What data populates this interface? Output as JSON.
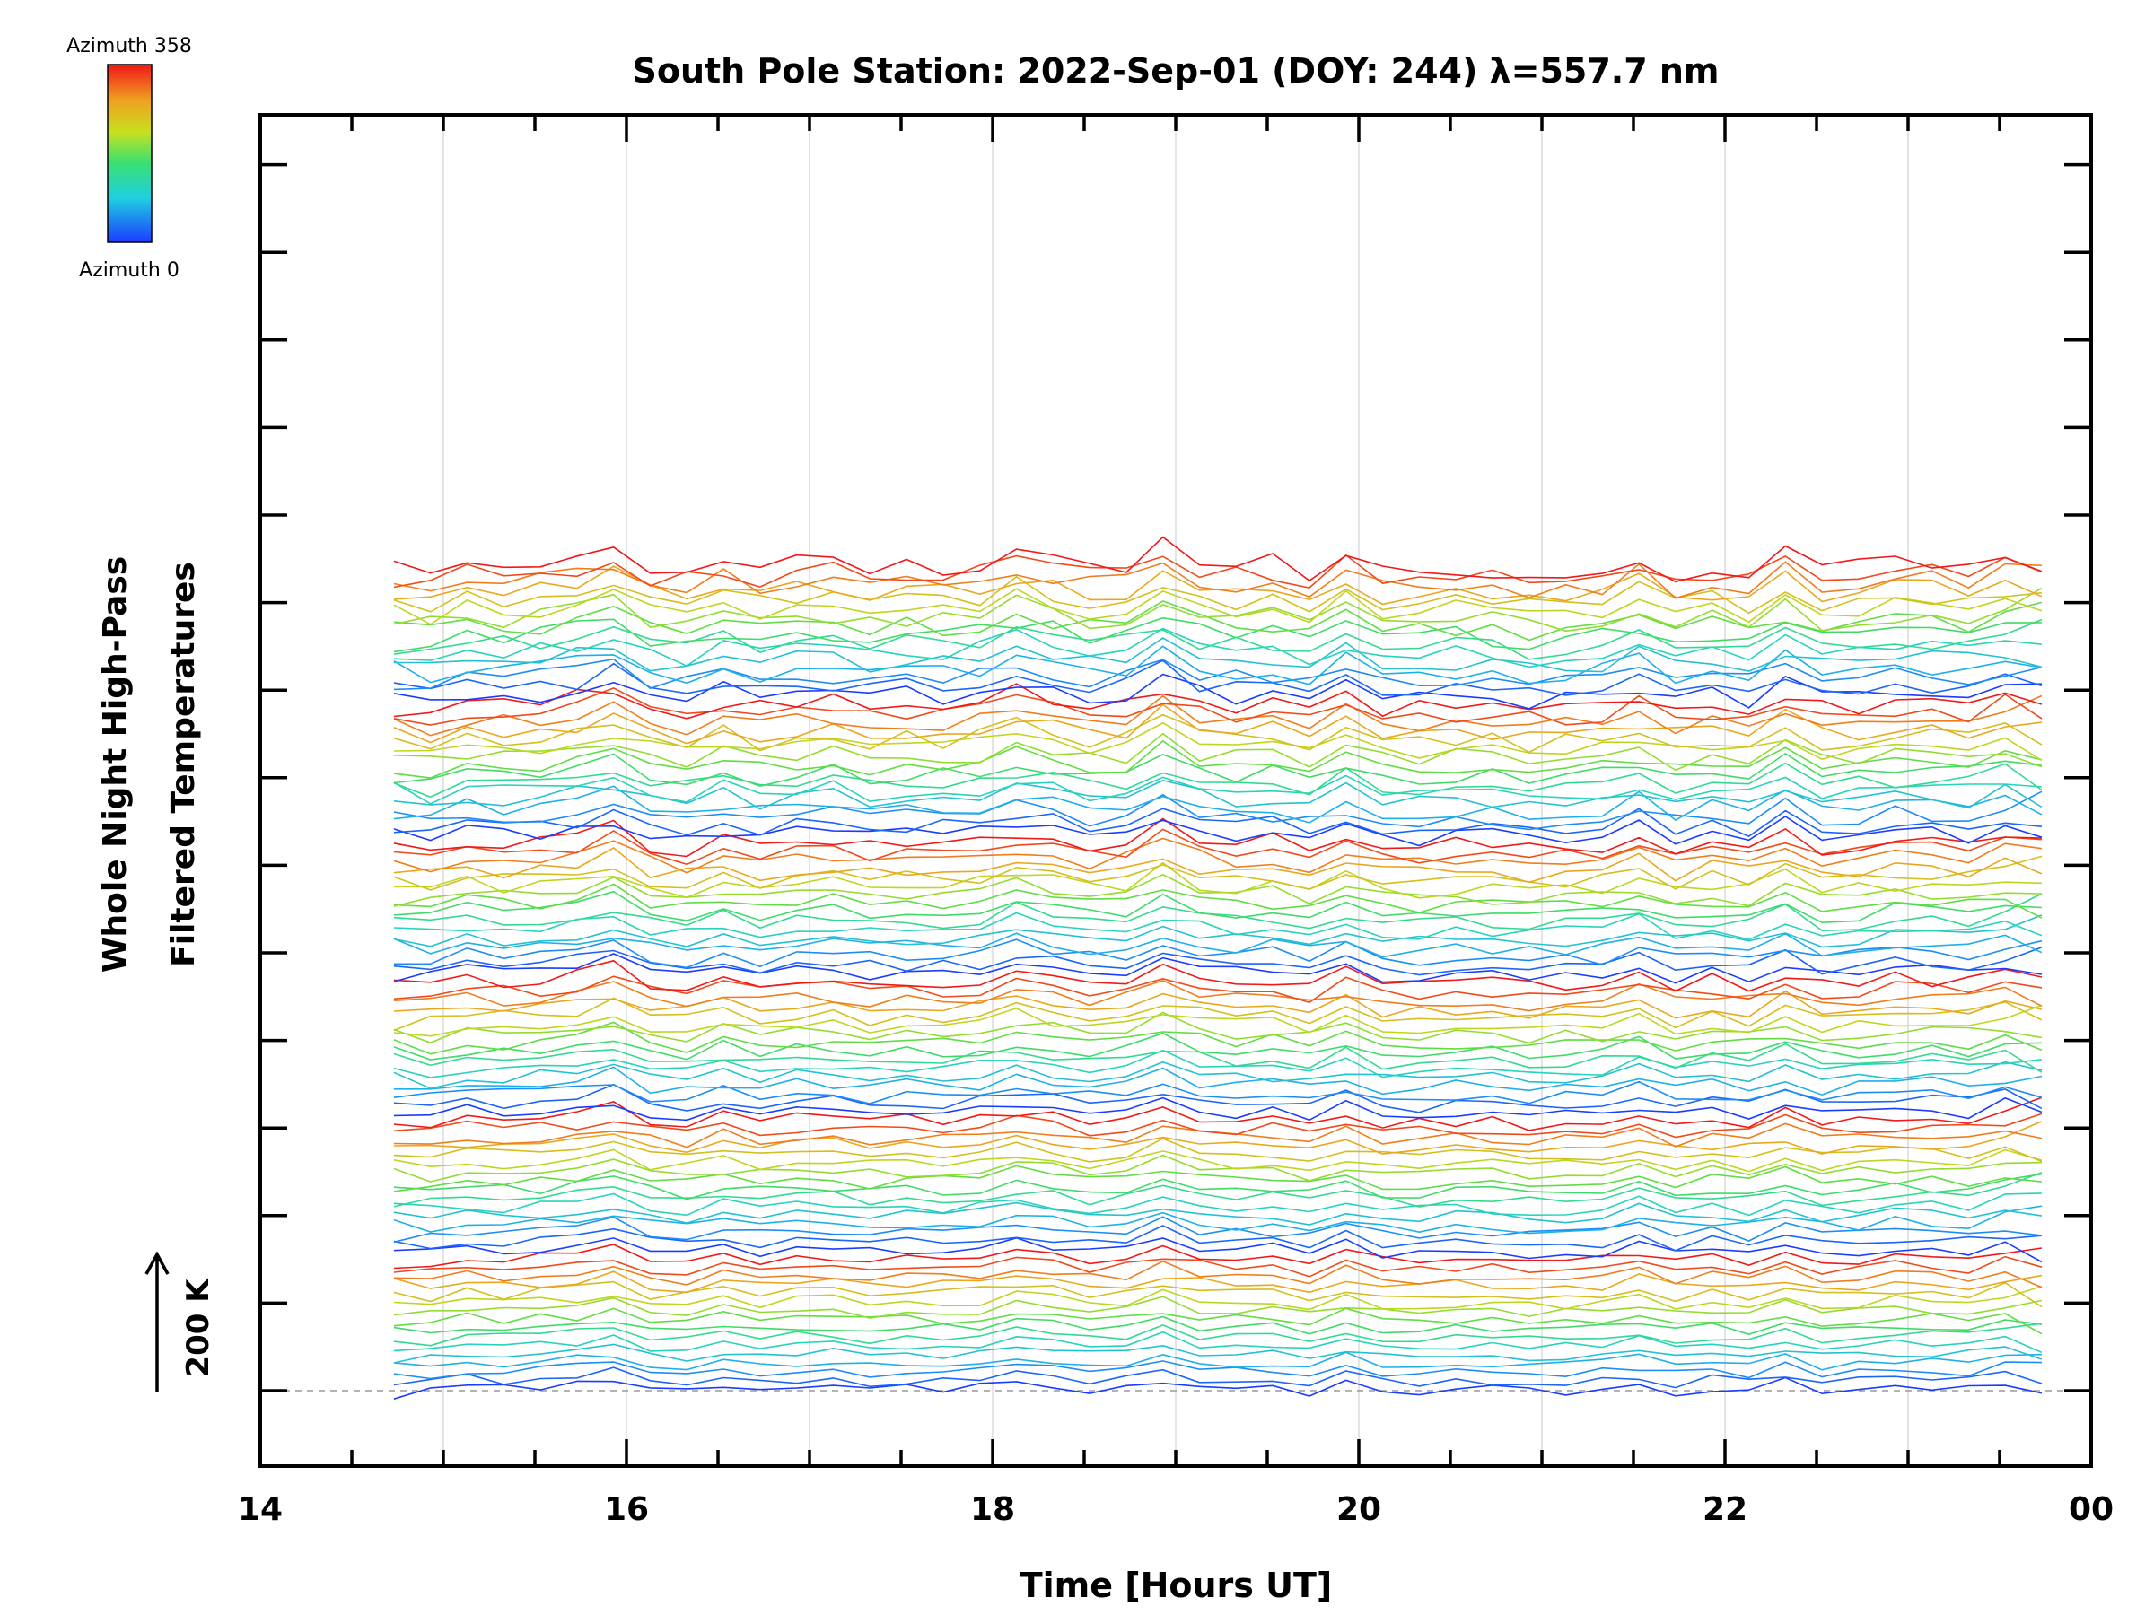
{
  "chart_data": {
    "type": "line",
    "title": "South Pole Station: 2022-Sep-01 (DOY: 244) λ=557.7 nm",
    "xlabel": "Time [Hours UT]",
    "ylabel_line1": "Whole Night High-Pass",
    "ylabel_line2": "Filtered Temperatures",
    "x_tick_labels": [
      "14",
      "16",
      "18",
      "20",
      "22",
      "00"
    ],
    "xlim": [
      14,
      24
    ],
    "x_data_range": [
      14.73,
      23.73
    ],
    "series_count": 96,
    "groups": 6,
    "azimuths_per_group": 16,
    "scale_bar_label": "200 K",
    "legend": {
      "top_label": "Azimuth  358",
      "bottom_label": "Azimuth  0",
      "azimuth_min": 0,
      "azimuth_max": 358,
      "colormap": "rainbow"
    },
    "grid": true,
    "baseline": "dashed"
  }
}
